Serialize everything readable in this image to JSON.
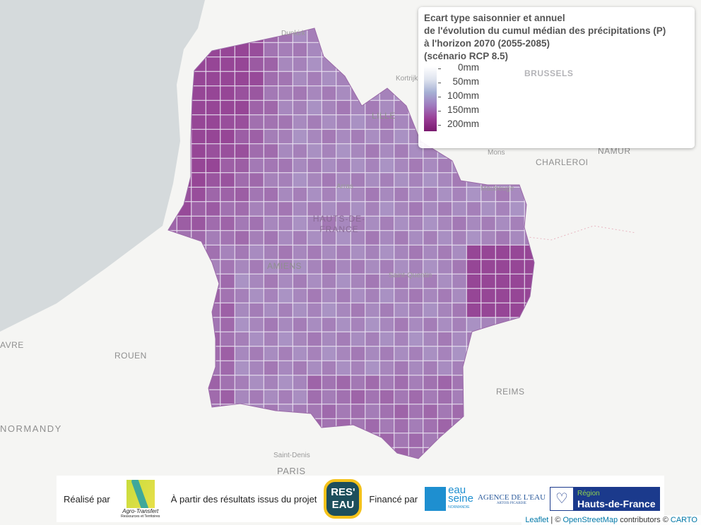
{
  "legend": {
    "title_lines": [
      "Ecart type saisonnier et annuel",
      "de l'évolution du cumul médian des précipitations (P)",
      "à l'horizon 2070 (2055-2085)",
      "(scénario RCP 8.5)"
    ],
    "ticks": [
      "0mm",
      "50mm",
      "100mm",
      "150mm",
      "200mm"
    ],
    "colors": [
      "#ffffff",
      "#dfe4ef",
      "#a6b0d4",
      "#9f7bbf",
      "#9a3f97",
      "#7a1a6f"
    ]
  },
  "map_labels": {
    "dunkirk": "Dunkirk",
    "kortrijk": "Kortrijk",
    "brussels": "BRUSSELS",
    "lille": "LILLE",
    "mons": "Mons",
    "namur": "NAMUR",
    "charleroi": "CHARLEROI",
    "arras": "Arras",
    "region": "HAUTS-DE-FRANCE",
    "maubeuge": "Maubeuge",
    "amiens": "AMIENS",
    "saint_quentin": "Saint-Quentin",
    "havre": "AVRE",
    "rouen": "ROUEN",
    "normandy": "NORMANDY",
    "reims": "REIMS",
    "saint_denis": "Saint-Denis",
    "paris": "PARIS"
  },
  "footer": {
    "made_by": "Réalisé par",
    "agro": "Agro-Transfert",
    "agro_sub": "Ressources et Territoires",
    "from_project": "À partir des résultats issus du projet",
    "reseau_1": "RES'",
    "reseau_2": "EAU",
    "funded_by": "Financé par",
    "eau_seine_1": "eau",
    "eau_seine_2": "seine",
    "eau_seine_3": "NORMANDIE",
    "agence": "AGENCE DE L'EAU",
    "agence_sub": "ARTOIS PICARDIE",
    "region_1": "Région",
    "region_2": "Hauts-de-France"
  },
  "attribution": {
    "leaflet": "Leaflet",
    "sep": " | © ",
    "osm": "OpenStreetMap",
    "contrib": " contributors © ",
    "carto": "CARTO"
  }
}
